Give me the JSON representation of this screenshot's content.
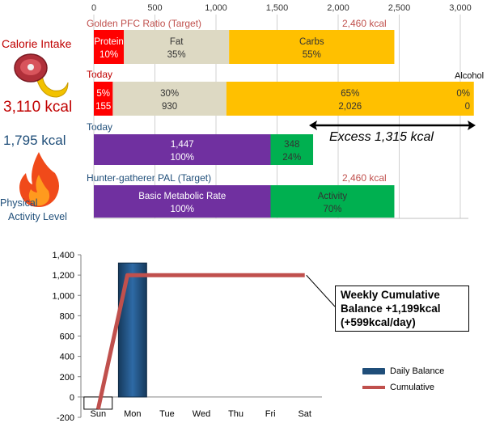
{
  "side": {
    "calorie_intake_label": "Calorie Intake",
    "intake_value": "3,110 kcal",
    "burn_value": "1,795 kcal",
    "physical_label": "Physical",
    "activity_level_label": "Activity Level"
  },
  "top": {
    "title": "Golden PFC Ratio (Target)",
    "target_kcal": "2,460 kcal",
    "today_label": "Today",
    "today2_label": "Today",
    "hunter_title": "Hunter-gatherer  PAL (Target)",
    "hunter_kcal": "2,460 kcal",
    "alcohol_label": "Alcohol",
    "excess_label": "Excess 1,315 kcal"
  },
  "chart_data": [
    {
      "type": "bar",
      "orientation": "horizontal",
      "stacked": true,
      "xlim": [
        0,
        3000
      ],
      "x_ticks": [
        "0",
        "500",
        "1,000",
        "1,500",
        "2,000",
        "2,500",
        "3,000"
      ],
      "tick_values": [
        0,
        500,
        1000,
        1500,
        2000,
        2500,
        3000
      ],
      "grid": true,
      "rows": [
        {
          "name": "Golden PFC Ratio (Target)",
          "segments": [
            {
              "name": "Protein",
              "value": 246,
              "color": "#ff0000",
              "line1": "Protein",
              "line2": "10%",
              "text_color": "#ffffff"
            },
            {
              "name": "Fat",
              "value": 861,
              "color": "#ddd9c3",
              "line1": "Fat",
              "line2": "35%",
              "text_color": "#333333"
            },
            {
              "name": "Carbs",
              "value": 1353,
              "color": "#ffc000",
              "line1": "Carbs",
              "line2": "55%",
              "text_color": "#333333"
            }
          ]
        },
        {
          "name": "Today (intake)",
          "segments": [
            {
              "name": "Protein",
              "value": 155,
              "color": "#ff0000",
              "line1": "5%",
              "line2": "155",
              "text_color": "#ffffff"
            },
            {
              "name": "Fat",
              "value": 930,
              "color": "#ddd9c3",
              "line1": "30%",
              "line2": "930",
              "text_color": "#333333"
            },
            {
              "name": "Carbs",
              "value": 2026,
              "color": "#ffc000",
              "line1": "65%",
              "line2": "2,026",
              "text_color": "#333333"
            },
            {
              "name": "Alcohol",
              "value": 0,
              "color": "#ffc000",
              "line1": "0%",
              "line2": "0",
              "text_color": "#333333"
            }
          ]
        },
        {
          "name": "Today (burn)",
          "segments": [
            {
              "name": "Basic Metabolic Rate",
              "value": 1447,
              "color": "#7030a0",
              "line1": "1,447",
              "line2": "100%",
              "text_color": "#ffffff"
            },
            {
              "name": "Activity",
              "value": 348,
              "color": "#00b050",
              "line1": "348",
              "line2": "24%",
              "text_color": "#333333"
            }
          ]
        },
        {
          "name": "Hunter-gatherer PAL (Target)",
          "segments": [
            {
              "name": "Basic Metabolic Rate",
              "value": 1447,
              "color": "#7030a0",
              "line1": "Basic Metabolic Rate",
              "line2": "100%",
              "text_color": "#ffffff"
            },
            {
              "name": "Activity",
              "value": 1013,
              "color": "#00b050",
              "line1": "Activity",
              "line2": "70%",
              "text_color": "#333333"
            }
          ]
        }
      ]
    },
    {
      "type": "bar",
      "categories": [
        "Sun",
        "Mon",
        "Tue",
        "Wed",
        "Thu",
        "Fri",
        "Sat"
      ],
      "ylim": [
        -200,
        1400
      ],
      "y_ticks": [
        "-200",
        "0",
        "200",
        "400",
        "600",
        "800",
        "1,000",
        "1,200",
        "1,400"
      ],
      "tick_values": [
        -200,
        0,
        200,
        400,
        600,
        800,
        1000,
        1200,
        1400
      ],
      "series": [
        {
          "name": "Daily Balance",
          "type": "bar",
          "color": "#1f4e79",
          "values": [
            -120,
            1319,
            null,
            null,
            null,
            null,
            null
          ]
        },
        {
          "name": "Cumulative",
          "type": "line",
          "color": "#c0504d",
          "values": [
            -120,
            1199,
            1199,
            1199,
            1199,
            1199,
            1199
          ]
        }
      ],
      "callout": [
        "Weekly Cumulative",
        "Balance +1,199kcal",
        "(+599kcal/day)"
      ],
      "legend": "right"
    }
  ]
}
